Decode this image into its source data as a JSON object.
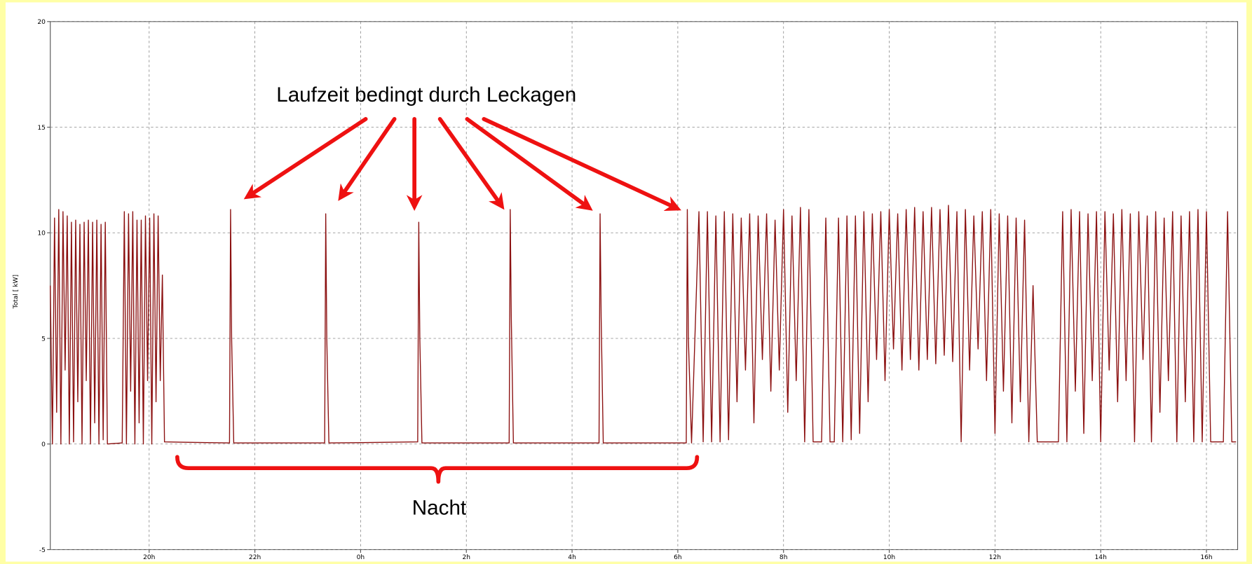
{
  "chart_data": {
    "type": "line",
    "ylabel": "Total [ kW]",
    "annotations": [
      "Laufzeit bedingt durch Leckagen",
      "Nacht"
    ],
    "color": "#8b1010",
    "grid": true,
    "xlim": [
      18.13,
      40.59
    ],
    "ylim": [
      -5,
      20
    ],
    "yticks": [
      -5,
      0,
      5,
      10,
      15,
      20
    ],
    "xticks": [
      {
        "value": 20,
        "label": "20h"
      },
      {
        "value": 22,
        "label": "22h"
      },
      {
        "value": 24,
        "label": "0h"
      },
      {
        "value": 26,
        "label": "2h"
      },
      {
        "value": 28,
        "label": "4h"
      },
      {
        "value": 30,
        "label": "6h"
      },
      {
        "value": 32,
        "label": "8h"
      },
      {
        "value": 34,
        "label": "10h"
      },
      {
        "value": 36,
        "label": "12h"
      },
      {
        "value": 38,
        "label": "14h"
      },
      {
        "value": 40,
        "label": "16h"
      }
    ],
    "x": [
      18.13,
      18.17,
      18.21,
      18.25,
      18.29,
      18.33,
      18.37,
      18.41,
      18.45,
      18.49,
      18.53,
      18.57,
      18.61,
      18.65,
      18.69,
      18.73,
      18.77,
      18.81,
      18.85,
      18.89,
      18.93,
      18.97,
      19.01,
      19.05,
      19.09,
      19.13,
      19.17,
      19.21,
      19.49,
      19.53,
      19.57,
      19.61,
      19.65,
      19.69,
      19.73,
      19.77,
      19.81,
      19.85,
      19.89,
      19.93,
      19.97,
      20.01,
      20.05,
      20.09,
      20.13,
      20.17,
      20.21,
      20.25,
      20.29,
      21.52,
      21.54,
      21.56,
      21.6,
      23.32,
      23.34,
      23.36,
      23.4,
      25.08,
      25.1,
      25.12,
      25.16,
      26.81,
      26.83,
      26.85,
      26.89,
      28.51,
      28.53,
      28.55,
      28.59,
      30.16,
      30.18,
      30.2,
      30.26,
      30.4,
      30.48,
      30.56,
      30.64,
      30.72,
      30.8,
      30.88,
      30.96,
      31.04,
      31.12,
      31.2,
      31.28,
      31.36,
      31.44,
      31.52,
      31.6,
      31.68,
      31.76,
      31.84,
      31.92,
      32.0,
      32.08,
      32.16,
      32.24,
      32.32,
      32.4,
      32.48,
      32.56,
      32.64,
      32.72,
      32.8,
      32.88,
      32.96,
      33.04,
      33.12,
      33.2,
      33.28,
      33.36,
      33.44,
      33.52,
      33.6,
      33.68,
      33.76,
      33.84,
      33.92,
      34.0,
      34.08,
      34.16,
      34.24,
      34.32,
      34.4,
      34.48,
      34.56,
      34.64,
      34.72,
      34.8,
      34.88,
      34.96,
      35.04,
      35.12,
      35.2,
      35.28,
      35.36,
      35.44,
      35.52,
      35.6,
      35.68,
      35.76,
      35.84,
      35.92,
      36.0,
      36.08,
      36.16,
      36.24,
      36.32,
      36.4,
      36.48,
      36.56,
      36.64,
      36.72,
      36.8,
      36.88,
      37.04,
      37.12,
      37.2,
      37.28,
      37.36,
      37.44,
      37.52,
      37.6,
      37.68,
      37.76,
      37.84,
      37.92,
      38.0,
      38.08,
      38.16,
      38.24,
      38.32,
      38.4,
      38.48,
      38.56,
      38.64,
      38.72,
      38.8,
      38.88,
      38.96,
      39.04,
      39.12,
      39.2,
      39.28,
      39.36,
      39.44,
      39.52,
      39.6,
      39.68,
      39.76,
      39.84,
      39.92,
      40.0,
      40.08,
      40.16,
      40.24,
      40.32,
      40.4,
      40.48,
      40.56
    ],
    "values": [
      7.5,
      0,
      10.7,
      1.5,
      11.1,
      0,
      11.0,
      3.5,
      10.8,
      0,
      10.5,
      0.1,
      10.6,
      2.0,
      10.4,
      0,
      10.5,
      3.0,
      10.6,
      0,
      10.5,
      1.0,
      10.6,
      0,
      10.4,
      0.2,
      10.5,
      0,
      0.05,
      11.0,
      0,
      10.9,
      2.5,
      11.0,
      0,
      10.6,
      1.0,
      10.6,
      0,
      10.8,
      3.0,
      10.7,
      0,
      10.9,
      2.0,
      10.8,
      3.0,
      8.0,
      0.1,
      0.05,
      11.1,
      5,
      0.05,
      0.05,
      10.9,
      5,
      0.05,
      0.1,
      10.5,
      5,
      0.05,
      0.05,
      11.1,
      6,
      0.05,
      0.05,
      10.9,
      6,
      0.05,
      0.05,
      11.1,
      5,
      0.05,
      11.0,
      0.1,
      11.0,
      0.1,
      10.8,
      0.1,
      11.0,
      0.2,
      10.9,
      2.0,
      10.7,
      3.5,
      10.9,
      1.0,
      10.8,
      4.0,
      10.9,
      2.5,
      10.6,
      3.5,
      11.1,
      1.5,
      10.8,
      3.0,
      11.2,
      0.1,
      11.1,
      0.1,
      0.1,
      0.1,
      10.7,
      0.1,
      0.1,
      10.7,
      0.1,
      10.8,
      0.2,
      10.8,
      0.5,
      11.0,
      2.0,
      10.9,
      4.0,
      11.0,
      3.0,
      11.1,
      4.5,
      10.9,
      3.5,
      11.1,
      4.0,
      11.2,
      3.5,
      11.0,
      4.0,
      11.2,
      3.8,
      11.1,
      4.2,
      11.3,
      3.9,
      11.0,
      0.1,
      11.1,
      3.5,
      10.8,
      4.5,
      11.0,
      3.0,
      11.1,
      0.5,
      10.9,
      2.5,
      10.8,
      1.0,
      10.7,
      2.0,
      10.6,
      0.1,
      7.5,
      0.1,
      0.1,
      0.1,
      0.1,
      0.1,
      11.0,
      0.1,
      11.1,
      2.5,
      11.0,
      0.5,
      10.9,
      3.0,
      11.0,
      0.1,
      11.0,
      3.5,
      10.9,
      2.0,
      11.1,
      3.0,
      10.9,
      0.1,
      11.0,
      4.0,
      10.8,
      0.1,
      11.0,
      1.5,
      10.7,
      3.0,
      11.0,
      0.1,
      10.8,
      2.0,
      11.0,
      0.1,
      11.1,
      0.1,
      11.0,
      0.1,
      0.1,
      0.1,
      0.1,
      11.0,
      0.1,
      0.1
    ]
  }
}
